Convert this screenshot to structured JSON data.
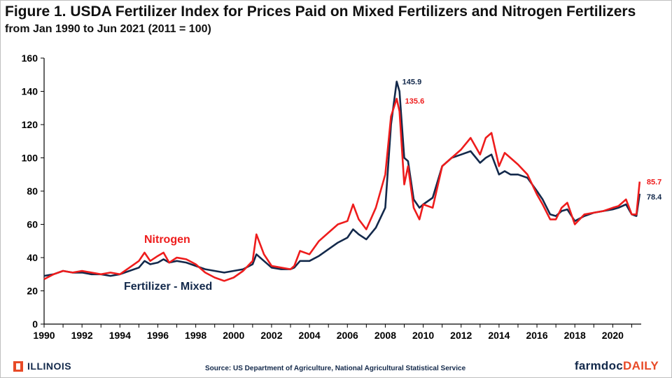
{
  "header": {
    "title": "Figure 1.  USDA Fertilizer Index for Prices Paid on Mixed Fertilizers and Nitrogen Fertilizers",
    "subtitle": "from Jan 1990 to Jun 2021 (2011 = 100)"
  },
  "footer": {
    "university": "ILLINOIS",
    "source": "Source: US Department of Agriculture, National Agricultural Statistical Service",
    "brand_a": "farmdoc",
    "brand_b": "DAILY"
  },
  "colors": {
    "nitrogen": "#ee1c1c",
    "mixed": "#13294b",
    "axis": "#000000"
  },
  "chart_data": {
    "type": "line",
    "xlim": [
      1990,
      2021.5
    ],
    "ylim": [
      0,
      160
    ],
    "x_ticks": [
      "1990",
      "1992",
      "1994",
      "1996",
      "1998",
      "2000",
      "2002",
      "2004",
      "2006",
      "2008",
      "2010",
      "2012",
      "2014",
      "2016",
      "2018",
      "2020"
    ],
    "y_ticks": [
      "0",
      "20",
      "40",
      "60",
      "80",
      "100",
      "120",
      "140",
      "160"
    ],
    "series": [
      {
        "name": "Nitrogen",
        "x": [
          1990,
          1990.5,
          1991,
          1991.5,
          1992,
          1992.5,
          1993,
          1993.5,
          1994,
          1994.5,
          1995,
          1995.3,
          1995.6,
          1996,
          1996.3,
          1996.6,
          1997,
          1997.5,
          1998,
          1998.5,
          1999,
          1999.5,
          2000,
          2000.5,
          2001,
          2001.2,
          2001.6,
          2002,
          2002.5,
          2003,
          2003.2,
          2003.5,
          2004,
          2004.5,
          2005,
          2005.5,
          2006,
          2006.3,
          2006.6,
          2007,
          2007.5,
          2008,
          2008.3,
          2008.6,
          2008.75,
          2009,
          2009.2,
          2009.5,
          2009.8,
          2010,
          2010.5,
          2011,
          2011.5,
          2012,
          2012.5,
          2013,
          2013.3,
          2013.6,
          2014,
          2014.3,
          2014.6,
          2015,
          2015.5,
          2016,
          2016.3,
          2016.7,
          2017,
          2017.3,
          2017.6,
          2018,
          2018.5,
          2019,
          2019.5,
          2020,
          2020.3,
          2020.7,
          2021,
          2021.25,
          2021.42
        ],
        "values": [
          27,
          30,
          32,
          31,
          32,
          31,
          30,
          31,
          30,
          34,
          38,
          43,
          38,
          41,
          43,
          37,
          40,
          39,
          36,
          31,
          28,
          26,
          28,
          32,
          38,
          54,
          42,
          35,
          34,
          33,
          35,
          44,
          42,
          50,
          55,
          60,
          62,
          72,
          63,
          57,
          70,
          90,
          125,
          135.6,
          128,
          84,
          95,
          70,
          63,
          72,
          70,
          95,
          100,
          105,
          112,
          102,
          112,
          115,
          95,
          103,
          100,
          96,
          90,
          78,
          72,
          63,
          63,
          70,
          73,
          60,
          66,
          67,
          68,
          70,
          71,
          75,
          66,
          66,
          85.7
        ]
      },
      {
        "name": "Fertilizer - Mixed",
        "x": [
          1990,
          1990.5,
          1991,
          1991.5,
          1992,
          1992.5,
          1993,
          1993.5,
          1994,
          1994.5,
          1995,
          1995.3,
          1995.6,
          1996,
          1996.3,
          1996.6,
          1997,
          1997.5,
          1998,
          1998.5,
          1999,
          1999.5,
          2000,
          2000.5,
          2001,
          2001.2,
          2001.6,
          2002,
          2002.5,
          2003,
          2003.2,
          2003.5,
          2004,
          2004.5,
          2005,
          2005.5,
          2006,
          2006.3,
          2006.6,
          2007,
          2007.5,
          2008,
          2008.3,
          2008.6,
          2008.75,
          2009,
          2009.2,
          2009.5,
          2009.8,
          2010,
          2010.5,
          2011,
          2011.5,
          2012,
          2012.5,
          2013,
          2013.3,
          2013.6,
          2014,
          2014.3,
          2014.6,
          2015,
          2015.5,
          2016,
          2016.3,
          2016.7,
          2017,
          2017.3,
          2017.6,
          2018,
          2018.5,
          2019,
          2019.5,
          2020,
          2020.3,
          2020.7,
          2021,
          2021.25,
          2021.42
        ],
        "values": [
          29,
          30,
          32,
          31,
          31,
          30,
          30,
          29,
          30,
          32,
          34,
          38,
          36,
          37,
          39,
          37,
          38,
          37,
          35,
          33,
          32,
          31,
          32,
          33,
          36,
          42,
          38,
          34,
          33,
          33,
          34,
          38,
          38,
          41,
          45,
          49,
          52,
          57,
          54,
          51,
          58,
          70,
          120,
          145.9,
          140,
          100,
          98,
          75,
          70,
          72,
          76,
          95,
          100,
          102,
          104,
          97,
          100,
          102,
          90,
          92,
          90,
          90,
          88,
          80,
          75,
          66,
          65,
          68,
          69,
          62,
          65,
          67,
          68,
          69,
          70,
          72,
          66,
          65,
          78.4
        ]
      }
    ],
    "series_labels": {
      "nitrogen": "Nitrogen",
      "mixed": "Fertilizer - Mixed"
    },
    "annotations": [
      {
        "series": "Fertilizer - Mixed",
        "x": 2008.6,
        "y": 145.9,
        "text": "145.9"
      },
      {
        "series": "Nitrogen",
        "x": 2008.6,
        "y": 135.6,
        "text": "135.6"
      },
      {
        "series": "Nitrogen",
        "x": 2021.42,
        "y": 85.7,
        "text": "85.7"
      },
      {
        "series": "Fertilizer - Mixed",
        "x": 2021.42,
        "y": 78.4,
        "text": "78.4"
      }
    ]
  }
}
